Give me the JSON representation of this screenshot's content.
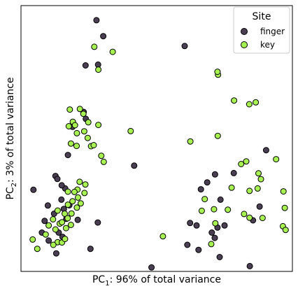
{
  "chart_data": {
    "type": "scatter",
    "xlabel_main": "PC",
    "xlabel_sub": "1",
    "xlabel_rest": ": 96% of total variance",
    "ylabel_main": "PC",
    "ylabel_sub": "2",
    "ylabel_rest": ": 3% of total variance",
    "xlim": [
      0,
      100
    ],
    "ylim": [
      0,
      100
    ],
    "grid": false,
    "ticks": false,
    "legend": {
      "title": "Site",
      "placement": "top-right"
    },
    "series": [
      {
        "name": "finger",
        "color": "#4a3f52",
        "points": [
          [
            27.8,
            94.5
          ],
          [
            30.3,
            88.5
          ],
          [
            28.4,
            77.8
          ],
          [
            60.3,
            84.8
          ],
          [
            23.8,
            77.5
          ],
          [
            23.1,
            60.0
          ],
          [
            19.0,
            54.4
          ],
          [
            17.3,
            43.8
          ],
          [
            23.9,
            57.4
          ],
          [
            41.7,
            39.8
          ],
          [
            4.6,
            30.7
          ],
          [
            12.7,
            35.9
          ],
          [
            13.4,
            34.8
          ],
          [
            16.3,
            31.2
          ],
          [
            15.0,
            32.4
          ],
          [
            17.8,
            24.9
          ],
          [
            15.8,
            23.5
          ],
          [
            12.2,
            21.7
          ],
          [
            9.9,
            24.8
          ],
          [
            14.9,
            27.0
          ],
          [
            8.7,
            19.0
          ],
          [
            16.7,
            19.8
          ],
          [
            20.9,
            19.4
          ],
          [
            7.7,
            14.6
          ],
          [
            10.2,
            11.6
          ],
          [
            13.9,
            14.6
          ],
          [
            15.3,
            13.0
          ],
          [
            25.6,
            8.5
          ],
          [
            13.0,
            6.8
          ],
          [
            28.3,
            18.4
          ],
          [
            48.1,
            1.5
          ],
          [
            62.3,
            18.2
          ],
          [
            64.7,
            17.3
          ],
          [
            66.3,
            30.9
          ],
          [
            68.6,
            33.5
          ],
          [
            71.5,
            36.5
          ],
          [
            78.4,
            37.0
          ],
          [
            73.5,
            27.0
          ],
          [
            75.0,
            17.3
          ],
          [
            61.3,
            10.0
          ],
          [
            65.4,
            8.1
          ],
          [
            71.4,
            12.6
          ],
          [
            70.3,
            14.6
          ],
          [
            72.4,
            16.5
          ],
          [
            73.2,
            5.4
          ],
          [
            85.5,
            19.2
          ],
          [
            90.3,
            45.6
          ],
          [
            87.9,
            24.4
          ],
          [
            84.3,
            2.0
          ]
        ]
      },
      {
        "name": "key",
        "color": "#a7f151",
        "points": [
          [
            27.0,
            84.5
          ],
          [
            33.8,
            82.6
          ],
          [
            28.5,
            75.9
          ],
          [
            72.6,
            74.0
          ],
          [
            72.4,
            75.1
          ],
          [
            78.5,
            64.3
          ],
          [
            84.1,
            62.9
          ],
          [
            86.5,
            63.6
          ],
          [
            18.0,
            60.9
          ],
          [
            21.7,
            61.1
          ],
          [
            23.0,
            59.3
          ],
          [
            19.1,
            56.3
          ],
          [
            17.6,
            54.6
          ],
          [
            19.9,
            55.0
          ],
          [
            24.8,
            56.1
          ],
          [
            28.5,
            55.1
          ],
          [
            23.3,
            52.7
          ],
          [
            20.6,
            52.0
          ],
          [
            40.4,
            52.8
          ],
          [
            72.5,
            51.0
          ],
          [
            24.6,
            50.2
          ],
          [
            18.4,
            48.1
          ],
          [
            20.5,
            47.2
          ],
          [
            25.8,
            47.1
          ],
          [
            26.8,
            47.5
          ],
          [
            62.4,
            48.9
          ],
          [
            29.6,
            43.5
          ],
          [
            30.5,
            41.2
          ],
          [
            21.6,
            33.7
          ],
          [
            23.7,
            32.7
          ],
          [
            20.8,
            30.8
          ],
          [
            17.3,
            30.0
          ],
          [
            19.7,
            29.9
          ],
          [
            21.0,
            27.8
          ],
          [
            23.4,
            29.5
          ],
          [
            22.0,
            25.6
          ],
          [
            20.6,
            24.0
          ],
          [
            17.3,
            25.1
          ],
          [
            19.0,
            26.4
          ],
          [
            16.1,
            21.7
          ],
          [
            17.2,
            20.0
          ],
          [
            18.6,
            21.8
          ],
          [
            13.5,
            22.9
          ],
          [
            18.4,
            17.5
          ],
          [
            14.3,
            18.0
          ],
          [
            15.1,
            18.5
          ],
          [
            12.7,
            15.8
          ],
          [
            10.2,
            17.3
          ],
          [
            16.6,
            16.3
          ],
          [
            13.5,
            11.0
          ],
          [
            9.1,
            13.9
          ],
          [
            11.8,
            19.6
          ],
          [
            4.3,
            12.0
          ],
          [
            6.0,
            8.5
          ],
          [
            15.1,
            10.9
          ],
          [
            16.2,
            12.2
          ],
          [
            11.9,
            10.0
          ],
          [
            52.3,
            13.2
          ],
          [
            81.1,
            40.4
          ],
          [
            83.0,
            41.4
          ],
          [
            94.0,
            42.2
          ],
          [
            87.5,
            36.9
          ],
          [
            88.4,
            34.7
          ],
          [
            77.6,
            31.5
          ],
          [
            87.2,
            31.2
          ],
          [
            84.2,
            30.3
          ],
          [
            67.7,
            27.2
          ],
          [
            96.7,
            30.1
          ],
          [
            71.1,
            23.4
          ],
          [
            66.6,
            22.8
          ],
          [
            76.2,
            23.2
          ],
          [
            82.2,
            21.6
          ],
          [
            89.0,
            20.1
          ],
          [
            97.2,
            23.9
          ],
          [
            84.2,
            20.2
          ],
          [
            96.5,
            17.0
          ],
          [
            97.5,
            15.6
          ],
          [
            71.6,
            18.1
          ],
          [
            70.1,
            10.3
          ]
        ]
      }
    ]
  }
}
